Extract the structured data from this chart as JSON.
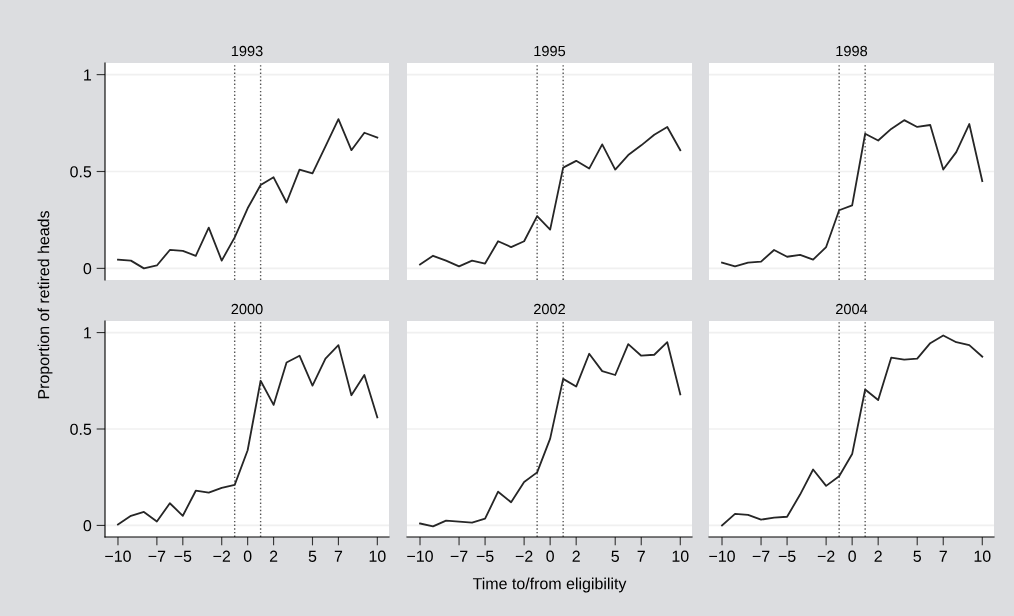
{
  "chart_data": [
    {
      "type": "line",
      "title": "1993",
      "ylabel": "Proportion of retired heads",
      "x": [
        -10,
        -9,
        -8,
        -7,
        -6,
        -5,
        -4,
        -3,
        -2,
        -1,
        0,
        1,
        2,
        3,
        4,
        5,
        6,
        7,
        8,
        9,
        10
      ],
      "series": [
        {
          "color": "#262626",
          "values": [
            0.045,
            0.04,
            0.0,
            0.015,
            0.095,
            0.09,
            0.065,
            0.21,
            0.04,
            0.16,
            0.31,
            0.43,
            0.47,
            0.34,
            0.51,
            0.49,
            0.63,
            0.77,
            0.61,
            0.7,
            0.675
          ]
        }
      ],
      "xlim": [
        -11,
        10.9
      ],
      "ylim": [
        -0.06,
        1.06
      ],
      "yticks": [
        0,
        0.5,
        1
      ],
      "tick_labels": "y",
      "grid": "y",
      "ref_lines": [
        {
          "axis": "x",
          "value": -1,
          "line_style": "dotted",
          "color": "#555555"
        },
        {
          "axis": "x",
          "value": 1,
          "line_style": "dotted",
          "color": "#555555"
        }
      ]
    },
    {
      "type": "line",
      "title": "1995",
      "x": [
        -10,
        -9,
        -8,
        -7,
        -6,
        -5,
        -4,
        -3,
        -2,
        -1,
        0,
        1,
        2,
        3,
        4,
        5,
        6,
        7,
        8,
        9,
        10
      ],
      "series": [
        {
          "color": "#262626",
          "values": [
            0.02,
            0.065,
            0.04,
            0.01,
            0.04,
            0.025,
            0.14,
            0.11,
            0.14,
            0.27,
            0.2,
            0.52,
            0.555,
            0.515,
            0.64,
            0.51,
            0.585,
            0.635,
            0.69,
            0.73,
            0.61
          ]
        }
      ],
      "xlim": [
        -11,
        10.9
      ],
      "ylim": [
        -0.06,
        1.06
      ],
      "yticks": [
        0,
        0.5,
        1
      ],
      "tick_labels": false,
      "grid": "y",
      "ref_lines": [
        {
          "axis": "x",
          "value": -1,
          "line_style": "dotted",
          "color": "#555555"
        },
        {
          "axis": "x",
          "value": 1,
          "line_style": "dotted",
          "color": "#555555"
        }
      ]
    },
    {
      "type": "line",
      "title": "1998",
      "x": [
        -10,
        -9,
        -8,
        -7,
        -6,
        -5,
        -4,
        -3,
        -2,
        -1,
        0,
        1,
        2,
        3,
        4,
        5,
        6,
        7,
        8,
        9,
        10
      ],
      "series": [
        {
          "color": "#262626",
          "values": [
            0.03,
            0.01,
            0.03,
            0.035,
            0.095,
            0.06,
            0.07,
            0.045,
            0.11,
            0.3,
            0.325,
            0.695,
            0.66,
            0.72,
            0.765,
            0.73,
            0.74,
            0.51,
            0.6,
            0.745,
            0.45
          ]
        }
      ],
      "xlim": [
        -11,
        10.9
      ],
      "ylim": [
        -0.06,
        1.06
      ],
      "yticks": [
        0,
        0.5,
        1
      ],
      "tick_labels": false,
      "grid": "y",
      "ref_lines": [
        {
          "axis": "x",
          "value": -1,
          "line_style": "dotted",
          "color": "#555555"
        },
        {
          "axis": "x",
          "value": 1,
          "line_style": "dotted",
          "color": "#555555"
        }
      ]
    },
    {
      "type": "line",
      "title": "2000",
      "x": [
        -10,
        -9,
        -8,
        -7,
        -6,
        -5,
        -4,
        -3,
        -2,
        -1,
        0,
        1,
        2,
        3,
        4,
        5,
        6,
        7,
        8,
        9,
        10
      ],
      "series": [
        {
          "color": "#262626",
          "values": [
            0.005,
            0.05,
            0.07,
            0.02,
            0.115,
            0.05,
            0.18,
            0.17,
            0.195,
            0.21,
            0.39,
            0.75,
            0.625,
            0.845,
            0.88,
            0.725,
            0.865,
            0.935,
            0.675,
            0.78,
            0.56
          ]
        }
      ],
      "xlim": [
        -11,
        10.9
      ],
      "ylim": [
        -0.06,
        1.06
      ],
      "yticks": [
        0,
        0.5,
        1
      ],
      "xticks": [
        {
          "value": -10,
          "label": "−10"
        },
        {
          "value": -7,
          "label": "−7"
        },
        {
          "value": -5,
          "label": "−5"
        },
        {
          "value": -2,
          "label": "−2"
        },
        0,
        2,
        5,
        7,
        10
      ],
      "grid": "y",
      "ref_lines": [
        {
          "axis": "x",
          "value": -1,
          "line_style": "dotted",
          "color": "#555555"
        },
        {
          "axis": "x",
          "value": 1,
          "line_style": "dotted",
          "color": "#555555"
        }
      ]
    },
    {
      "type": "line",
      "title": "2002",
      "xlabel": "Time to/from eligibility",
      "x": [
        -10,
        -9,
        -8,
        -7,
        -6,
        -5,
        -4,
        -3,
        -2,
        -1,
        0,
        1,
        2,
        3,
        4,
        5,
        6,
        7,
        8,
        9,
        10
      ],
      "series": [
        {
          "color": "#262626",
          "values": [
            0.01,
            -0.005,
            0.025,
            0.02,
            0.015,
            0.035,
            0.175,
            0.12,
            0.225,
            0.275,
            0.45,
            0.76,
            0.72,
            0.89,
            0.8,
            0.78,
            0.94,
            0.88,
            0.885,
            0.95,
            0.68
          ]
        }
      ],
      "xlim": [
        -11,
        10.9
      ],
      "ylim": [
        -0.06,
        1.06
      ],
      "yticks": [
        0,
        0.5,
        1
      ],
      "xticks": [
        {
          "value": -10,
          "label": "−10"
        },
        {
          "value": -7,
          "label": "−7"
        },
        {
          "value": -5,
          "label": "−5"
        },
        {
          "value": -2,
          "label": "−2"
        },
        0,
        2,
        5,
        7,
        10
      ],
      "tick_labels": "x",
      "grid": "y",
      "ref_lines": [
        {
          "axis": "x",
          "value": -1,
          "line_style": "dotted",
          "color": "#555555"
        },
        {
          "axis": "x",
          "value": 1,
          "line_style": "dotted",
          "color": "#555555"
        }
      ]
    },
    {
      "type": "line",
      "title": "2004",
      "x": [
        -10,
        -9,
        -8,
        -7,
        -6,
        -5,
        -4,
        -3,
        -2,
        -1,
        0,
        1,
        2,
        3,
        4,
        5,
        6,
        7,
        8,
        9,
        10
      ],
      "series": [
        {
          "color": "#262626",
          "values": [
            0.0,
            0.06,
            0.055,
            0.03,
            0.04,
            0.045,
            0.16,
            0.29,
            0.205,
            0.255,
            0.37,
            0.705,
            0.65,
            0.87,
            0.86,
            0.865,
            0.945,
            0.985,
            0.95,
            0.935,
            0.875
          ]
        }
      ],
      "xlim": [
        -11,
        10.9
      ],
      "ylim": [
        -0.06,
        1.06
      ],
      "yticks": [
        0,
        0.5,
        1
      ],
      "xticks": [
        {
          "value": -10,
          "label": "−10"
        },
        {
          "value": -7,
          "label": "−7"
        },
        {
          "value": -5,
          "label": "−5"
        },
        {
          "value": -2,
          "label": "−2"
        },
        0,
        2,
        5,
        7,
        10
      ],
      "tick_labels": "x",
      "grid": "y",
      "ref_lines": [
        {
          "axis": "x",
          "value": -1,
          "line_style": "dotted",
          "color": "#555555"
        },
        {
          "axis": "x",
          "value": 1,
          "line_style": "dotted",
          "color": "#555555"
        }
      ]
    }
  ]
}
